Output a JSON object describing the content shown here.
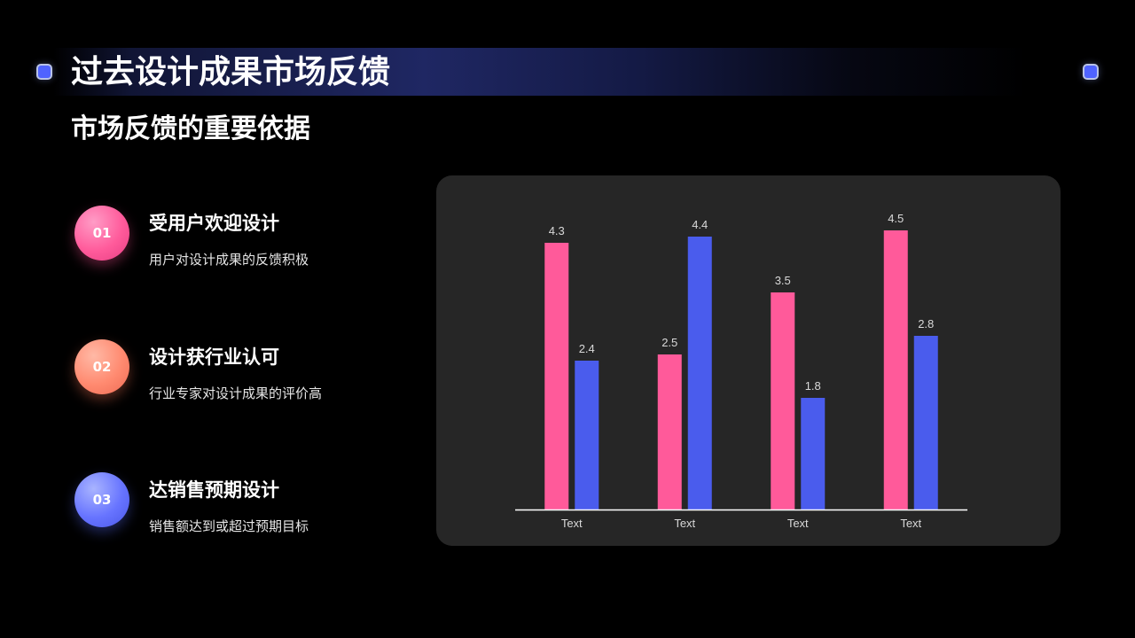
{
  "header": {
    "title": "过去设计成果市场反馈",
    "subtitle": "市场反馈的重要依据"
  },
  "points": [
    {
      "number": "01",
      "title": "受用户欢迎设计",
      "desc": "用户对设计成果的反馈积极"
    },
    {
      "number": "02",
      "title": "设计获行业认可",
      "desc": "行业专家对设计成果的评价高"
    },
    {
      "number": "03",
      "title": "达销售预期设计",
      "desc": "销售额达到或超过预期目标"
    }
  ],
  "colors": {
    "series1": "#ff5a9a",
    "series2": "#4a5ced",
    "card": "#262626",
    "axis": "#ffffff"
  },
  "chart_data": {
    "type": "bar",
    "categories": [
      "Text",
      "Text",
      "Text",
      "Text"
    ],
    "series": [
      {
        "values": [
          4.3,
          2.5,
          3.5,
          4.5
        ]
      },
      {
        "values": [
          2.4,
          4.4,
          1.8,
          2.8
        ]
      }
    ],
    "title": "",
    "xlabel": "",
    "ylabel": "",
    "ylim": [
      0,
      5
    ],
    "grid": false,
    "legend": "none",
    "data_labels": true
  }
}
